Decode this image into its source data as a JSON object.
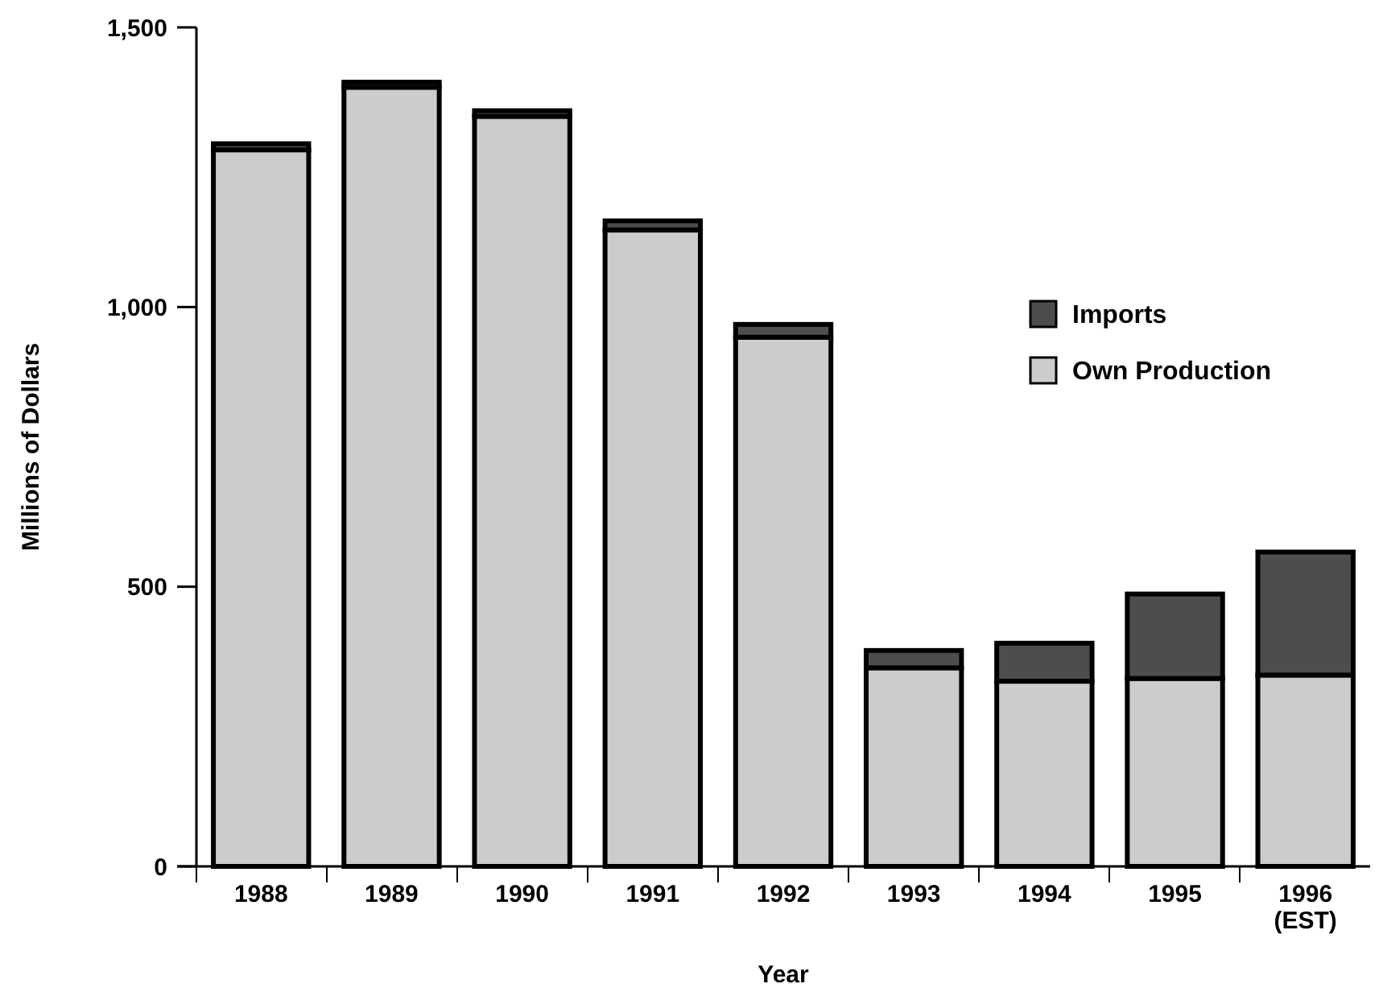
{
  "chart_data": {
    "type": "bar",
    "stacked": true,
    "xlabel": "Year",
    "ylabel": "Millions of Dollars",
    "categories": [
      "1988",
      "1989",
      "1990",
      "1991",
      "1992",
      "1993",
      "1994",
      "1995",
      "1996\n(EST)"
    ],
    "series": [
      {
        "name": "Own Production",
        "color": "#cccccc",
        "values": [
          1281,
          1393,
          1341,
          1138,
          946,
          355,
          331,
          336,
          342
        ]
      },
      {
        "name": "Imports",
        "color": "#4d4d4d",
        "values": [
          11,
          9,
          10,
          16,
          23,
          31,
          68,
          151,
          220
        ]
      }
    ],
    "ylim": [
      0,
      1500
    ],
    "yticks": [
      {
        "value": 0,
        "label": "0"
      },
      {
        "value": 500,
        "label": "500"
      },
      {
        "value": 1000,
        "label": "1,000"
      },
      {
        "value": 1500,
        "label": "1,500"
      }
    ],
    "legend": "right"
  }
}
